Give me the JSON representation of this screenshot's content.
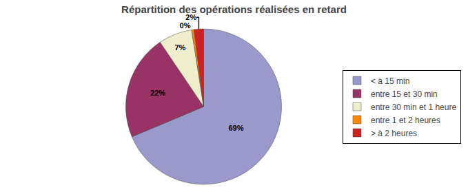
{
  "chart_data": {
    "type": "pie",
    "title": "Répartition des opérations réalisées en retard",
    "categories": [
      "< à 15 min",
      "entre 15 et 30 min",
      "entre 30 min et 1 heure",
      "entre 1 et 2 heures",
      "> à 2 heures"
    ],
    "values": [
      69,
      22,
      7,
      0.5,
      2
    ],
    "value_labels": [
      "69%",
      "22%",
      "7%",
      "0%",
      "2%"
    ],
    "colors": [
      "#9999CC",
      "#993366",
      "#EEEECC",
      "#FF8800",
      "#CC2222"
    ],
    "legend": "right",
    "data_labels": true
  }
}
